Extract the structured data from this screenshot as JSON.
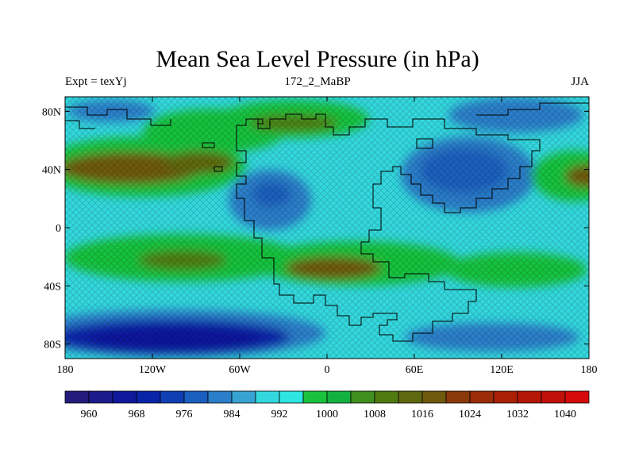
{
  "title": "Mean Sea Level Pressure (in hPa)",
  "subtitle_left": "Expt = texYj",
  "subtitle_center": "172_2_MaBP",
  "subtitle_right": "JJA",
  "map": {
    "lon_range": [
      -180,
      180
    ],
    "lat_range": [
      -90,
      90
    ],
    "lon_ticks": [
      {
        "value": -180,
        "label": "180"
      },
      {
        "value": -120,
        "label": "120W"
      },
      {
        "value": -60,
        "label": "60W"
      },
      {
        "value": 0,
        "label": "0"
      },
      {
        "value": 60,
        "label": "60E"
      },
      {
        "value": 120,
        "label": "120E"
      },
      {
        "value": 180,
        "label": "180"
      }
    ],
    "lat_ticks": [
      {
        "value": 80,
        "label": "80N"
      },
      {
        "value": 40,
        "label": "40N"
      },
      {
        "value": 0,
        "label": "0"
      },
      {
        "value": -40,
        "label": "40S"
      },
      {
        "value": -80,
        "label": "80S"
      }
    ]
  },
  "colorbar": {
    "colors": [
      "#241a7c",
      "#1b1b8c",
      "#10189b",
      "#0a24a8",
      "#0f3fb3",
      "#1a5ebe",
      "#2b7ec9",
      "#37a3d3",
      "#33d8de",
      "#2ee5e1",
      "#19c23c",
      "#12b240",
      "#3e8f1e",
      "#4f7a10",
      "#5f680e",
      "#6e5a0c",
      "#8a3a0a",
      "#9a2c08",
      "#a82106",
      "#b41706",
      "#c0100a",
      "#d40a0a"
    ],
    "labels": [
      {
        "boundary": 1,
        "text": "960"
      },
      {
        "boundary": 3,
        "text": "968"
      },
      {
        "boundary": 5,
        "text": "976"
      },
      {
        "boundary": 7,
        "text": "984"
      },
      {
        "boundary": 9,
        "text": "992"
      },
      {
        "boundary": 11,
        "text": "1000"
      },
      {
        "boundary": 13,
        "text": "1008"
      },
      {
        "boundary": 15,
        "text": "1016"
      },
      {
        "boundary": 17,
        "text": "1024"
      },
      {
        "boundary": 19,
        "text": "1032"
      },
      {
        "boundary": 21,
        "text": "1040"
      }
    ]
  }
}
